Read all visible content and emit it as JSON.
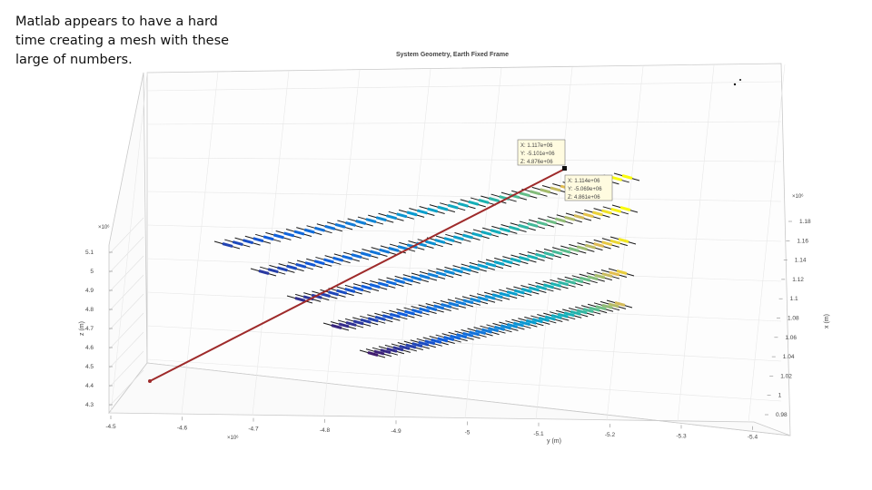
{
  "caption_lines": [
    "Matlab appears to have a hard",
    "time creating a mesh with these",
    "large of numbers."
  ],
  "chart_data": {
    "type": "surface-3d",
    "title": "System Geometry, Earth Fixed Frame",
    "xlabel": "x (m)",
    "ylabel": "y (m)",
    "zlabel": "z (m)",
    "x_exponent": "×10⁶",
    "y_exponent": "×10⁶",
    "z_exponent": "×10⁶",
    "x_ticks": [
      "1.18",
      "1.16",
      "1.14",
      "1.12",
      "1.1",
      "1.08",
      "1.06",
      "1.04",
      "1.02",
      "1",
      "0.98"
    ],
    "y_ticks": [
      "-4.5",
      "-4.6",
      "-4.7",
      "-4.8",
      "-4.9",
      "-5",
      "-5.1",
      "-5.2",
      "-5.3",
      "-5.4"
    ],
    "z_ticks": [
      "5.1",
      "5",
      "4.9",
      "4.8",
      "4.7",
      "4.6",
      "4.5",
      "4.4",
      "4.3"
    ],
    "datatips": [
      {
        "lines": [
          "X: 1.117e+06",
          "Y: -5.101e+06",
          "Z: 4.876e+06"
        ]
      },
      {
        "lines": [
          "X: 1.114e+06",
          "Y: -5.069e+06",
          "Z: 4.861e+06"
        ]
      }
    ],
    "grid": true,
    "colormap": "parula"
  }
}
